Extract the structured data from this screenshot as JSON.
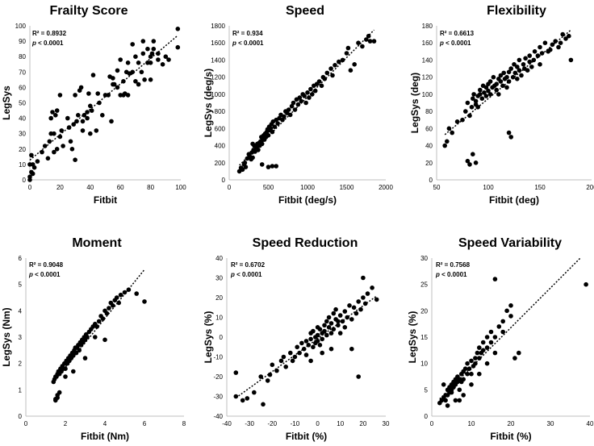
{
  "chart_data": [
    {
      "type": "scatter",
      "title": "Frailty Score",
      "xlabel": "Fitbit",
      "ylabel": "LegSys",
      "xlim": [
        0,
        100
      ],
      "ylim": [
        0,
        100
      ],
      "xticks": [
        "0",
        "20",
        "40",
        "60",
        "80",
        "100"
      ],
      "yticks": [
        "0",
        "10",
        "20",
        "30",
        "40",
        "50",
        "60",
        "70",
        "80",
        "90",
        "100"
      ],
      "r2_text": "R² = 0.8932",
      "p_label": "p",
      "p_value": " < 0.0001",
      "trendline": true,
      "trendline_color": "#000000",
      "marker_color": "#000000",
      "x": [
        0,
        0,
        0,
        1,
        1,
        2,
        2,
        3,
        5,
        8,
        10,
        12,
        13,
        14,
        14,
        15,
        16,
        16,
        17,
        18,
        18,
        20,
        20,
        21,
        22,
        25,
        26,
        27,
        28,
        29,
        30,
        30,
        31,
        32,
        33,
        34,
        35,
        35,
        36,
        38,
        38,
        39,
        40,
        40,
        41,
        42,
        44,
        45,
        46,
        48,
        50,
        52,
        53,
        54,
        55,
        55,
        56,
        58,
        58,
        60,
        60,
        62,
        62,
        63,
        64,
        65,
        65,
        66,
        68,
        68,
        70,
        70,
        72,
        72,
        74,
        75,
        75,
        76,
        78,
        78,
        80,
        80,
        80,
        81,
        82,
        82,
        85,
        85,
        88,
        90,
        92,
        98,
        98
      ],
      "y": [
        0,
        2,
        10,
        5,
        16,
        10,
        4,
        8,
        12,
        18,
        22,
        14,
        25,
        30,
        40,
        44,
        30,
        18,
        42,
        45,
        20,
        28,
        55,
        32,
        22,
        40,
        34,
        25,
        20,
        36,
        13,
        55,
        38,
        42,
        58,
        60,
        38,
        32,
        42,
        44,
        40,
        56,
        48,
        30,
        45,
        68,
        32,
        56,
        50,
        42,
        55,
        55,
        67,
        38,
        62,
        66,
        62,
        60,
        71,
        55,
        78,
        55,
        64,
        56,
        70,
        76,
        55,
        69,
        70,
        88,
        80,
        64,
        62,
        76,
        70,
        82,
        90,
        65,
        76,
        85,
        76,
        80,
        65,
        82,
        85,
        90,
        82,
        78,
        75,
        80,
        78,
        98,
        86
      ]
    },
    {
      "type": "scatter",
      "title": "Speed",
      "xlabel": "Fitbit (deg/s)",
      "ylabel": "LegSys (deg/s)",
      "xlim": [
        0,
        2000
      ],
      "ylim": [
        0,
        1800
      ],
      "xticks": [
        "0",
        "500",
        "1000",
        "1500",
        "2000"
      ],
      "yticks": [
        "0",
        "200",
        "400",
        "600",
        "800",
        "1000",
        "1200",
        "1400",
        "1600",
        "1800"
      ],
      "r2_text": "R² = 0.934",
      "p_label": "p",
      "p_value": " < 0.0001",
      "trendline": true,
      "trendline_color": "#000000",
      "marker_color": "#000000",
      "x": [
        130,
        150,
        170,
        190,
        200,
        210,
        230,
        250,
        260,
        280,
        290,
        300,
        310,
        320,
        330,
        350,
        360,
        370,
        380,
        390,
        400,
        410,
        420,
        430,
        440,
        450,
        460,
        470,
        480,
        490,
        500,
        510,
        520,
        530,
        540,
        550,
        560,
        580,
        600,
        620,
        640,
        660,
        680,
        700,
        720,
        740,
        760,
        780,
        800,
        820,
        840,
        860,
        880,
        900,
        920,
        940,
        960,
        980,
        1000,
        1020,
        1040,
        1060,
        1080,
        1100,
        1120,
        1150,
        1180,
        1200,
        1220,
        1250,
        1300,
        1320,
        1350,
        1400,
        1450,
        1500,
        1520,
        1550,
        1600,
        1650,
        1700,
        1750,
        1780,
        1800,
        1850,
        550,
        420,
        500,
        300,
        600
      ],
      "y": [
        100,
        140,
        120,
        180,
        200,
        150,
        250,
        300,
        280,
        240,
        320,
        260,
        350,
        400,
        330,
        380,
        420,
        350,
        430,
        400,
        450,
        500,
        420,
        480,
        520,
        470,
        540,
        500,
        560,
        590,
        520,
        620,
        580,
        600,
        650,
        560,
        680,
        620,
        700,
        660,
        720,
        760,
        700,
        740,
        800,
        780,
        820,
        760,
        860,
        900,
        820,
        940,
        880,
        960,
        920,
        1000,
        980,
        900,
        1020,
        960,
        1060,
        1000,
        1100,
        1040,
        1120,
        1150,
        1100,
        1200,
        1180,
        1250,
        1300,
        1220,
        1340,
        1380,
        1400,
        1480,
        1540,
        1280,
        1350,
        1600,
        1560,
        1640,
        1680,
        1620,
        1620,
        160,
        180,
        150,
        420,
        160
      ]
    },
    {
      "type": "scatter",
      "title": "Flexibility",
      "xlabel": "Fitbit (deg)",
      "ylabel": "LegSys (deg)",
      "xlim": [
        50,
        200
      ],
      "ylim": [
        0,
        180
      ],
      "xticks": [
        "50",
        "100",
        "150",
        "200"
      ],
      "yticks": [
        "0",
        "20",
        "40",
        "60",
        "80",
        "100",
        "120",
        "140",
        "160",
        "180"
      ],
      "r2_text": "R² = 0.6613",
      "p_label": "p",
      "p_value": " < 0.0001",
      "trendline": true,
      "trendline_color": "#000000",
      "marker_color": "#000000",
      "x": [
        58,
        60,
        62,
        65,
        70,
        75,
        78,
        80,
        82,
        84,
        85,
        86,
        88,
        88,
        90,
        90,
        92,
        92,
        94,
        95,
        96,
        98,
        98,
        100,
        100,
        102,
        102,
        104,
        105,
        106,
        108,
        108,
        110,
        110,
        112,
        112,
        114,
        115,
        116,
        118,
        118,
        120,
        120,
        122,
        124,
        125,
        126,
        128,
        128,
        130,
        130,
        132,
        134,
        135,
        136,
        138,
        140,
        140,
        142,
        144,
        145,
        148,
        150,
        150,
        152,
        155,
        158,
        160,
        162,
        165,
        168,
        170,
        172,
        175,
        178,
        180,
        120,
        122,
        88,
        80,
        82,
        85
      ],
      "y": [
        40,
        45,
        60,
        55,
        68,
        70,
        80,
        90,
        75,
        85,
        95,
        100,
        88,
        92,
        98,
        85,
        100,
        105,
        95,
        110,
        102,
        98,
        108,
        112,
        104,
        100,
        115,
        108,
        120,
        110,
        112,
        105,
        118,
        100,
        122,
        115,
        110,
        125,
        118,
        120,
        108,
        126,
        115,
        130,
        120,
        135,
        125,
        118,
        132,
        128,
        140,
        122,
        135,
        130,
        142,
        128,
        138,
        145,
        132,
        140,
        150,
        145,
        155,
        135,
        148,
        160,
        150,
        152,
        158,
        162,
        155,
        160,
        170,
        165,
        168,
        140,
        55,
        50,
        20,
        22,
        18,
        30
      ],
      "spare": null
    },
    {
      "type": "scatter",
      "title": "Moment",
      "xlabel": "Fitbit (Nm)",
      "ylabel": "LegSys (Nm)",
      "xlim": [
        0,
        8
      ],
      "ylim": [
        0,
        6
      ],
      "xticks": [
        "0",
        "2",
        "4",
        "6",
        "8"
      ],
      "yticks": [
        "0",
        "1",
        "2",
        "3",
        "4",
        "5",
        "6"
      ],
      "r2_text": "R² = 0.9048",
      "p_label": "p",
      "p_value": " < 0.0001",
      "trendline": true,
      "trendline_color": "#000000",
      "marker_color": "#000000",
      "x": [
        1.4,
        1.45,
        1.5,
        1.5,
        1.55,
        1.6,
        1.6,
        1.65,
        1.7,
        1.75,
        1.8,
        1.85,
        1.9,
        1.95,
        2.0,
        2.0,
        2.05,
        2.1,
        2.15,
        2.2,
        2.25,
        2.3,
        2.35,
        2.4,
        2.45,
        2.5,
        2.55,
        2.6,
        2.65,
        2.7,
        2.75,
        2.8,
        2.85,
        2.9,
        2.95,
        3.0,
        3.05,
        3.1,
        3.2,
        3.3,
        3.4,
        3.5,
        3.6,
        3.7,
        3.8,
        3.9,
        4.0,
        4.1,
        4.2,
        4.3,
        4.4,
        4.5,
        4.6,
        4.7,
        4.8,
        5.0,
        5.2,
        5.6,
        6.0,
        1.5,
        1.6,
        1.7,
        2.0,
        2.4,
        3.0,
        3.5,
        4.0
      ],
      "y": [
        1.3,
        1.4,
        1.5,
        0.6,
        1.5,
        1.6,
        0.7,
        1.7,
        1.6,
        1.8,
        1.7,
        1.9,
        1.8,
        2.0,
        2.0,
        1.8,
        2.1,
        2.0,
        2.2,
        2.1,
        2.3,
        2.2,
        2.4,
        2.3,
        2.5,
        2.6,
        2.4,
        2.6,
        2.7,
        2.5,
        2.8,
        2.7,
        2.9,
        2.8,
        3.0,
        2.9,
        3.1,
        3.0,
        3.2,
        3.3,
        3.4,
        3.5,
        3.4,
        3.6,
        3.8,
        3.7,
        4.0,
        3.9,
        4.1,
        4.3,
        4.2,
        4.4,
        4.5,
        4.3,
        4.6,
        4.7,
        4.8,
        4.65,
        4.35,
        0.65,
        0.8,
        0.9,
        1.5,
        1.7,
        2.2,
        3.0,
        2.9
      ]
    },
    {
      "type": "scatter",
      "title": "Speed Reduction",
      "xlabel": "Fitbit (%)",
      "ylabel": "LegSys (%)",
      "xlim": [
        -40,
        30
      ],
      "ylim": [
        -40,
        40
      ],
      "xticks": [
        "-40",
        "-30",
        "-20",
        "-10",
        "0",
        "10",
        "20",
        "30"
      ],
      "yticks": [
        "-40",
        "-30",
        "-20",
        "-10",
        "0",
        "10",
        "20",
        "30",
        "40"
      ],
      "r2_text": "R² = 0.6702",
      "p_label": "p",
      "p_value": " < 0.0001",
      "trendline": true,
      "trendline_color": "#000000",
      "marker_color": "#000000",
      "x": [
        -36,
        -33,
        -31,
        -28,
        -25,
        -22,
        -21,
        -20,
        -18,
        -16,
        -15,
        -14,
        -12,
        -11,
        -10,
        -9,
        -8,
        -7,
        -6,
        -5,
        -5,
        -4,
        -3,
        -3,
        -2,
        -2,
        -1,
        -1,
        0,
        0,
        0,
        1,
        1,
        2,
        2,
        3,
        3,
        4,
        4,
        5,
        5,
        6,
        6,
        7,
        7,
        8,
        8,
        9,
        10,
        10,
        11,
        12,
        13,
        14,
        15,
        16,
        17,
        18,
        19,
        20,
        21,
        22,
        24,
        26,
        -36,
        -24,
        18,
        20,
        15,
        -3,
        2,
        6,
        9,
        12
      ],
      "y": [
        -30,
        -32,
        -31,
        -28,
        -20,
        -22,
        -19,
        -14,
        -17,
        -12,
        -10,
        -15,
        -8,
        -12,
        -10,
        -5,
        -8,
        -3,
        -6,
        -2,
        -9,
        -4,
        2,
        -1,
        -5,
        3,
        0,
        -3,
        -2,
        5,
        1,
        -4,
        4,
        2,
        -1,
        6,
        3,
        8,
        1,
        5,
        10,
        7,
        2,
        12,
        4,
        9,
        14,
        6,
        11,
        2,
        8,
        13,
        10,
        16,
        9,
        15,
        12,
        18,
        14,
        20,
        17,
        22,
        25,
        19,
        -18,
        -34,
        -20,
        30,
        -6,
        -12,
        -8,
        -6,
        8,
        5
      ]
    },
    {
      "type": "scatter",
      "title": "Speed Variability",
      "xlabel": "Fitbit (%)",
      "ylabel": "LegSys (%)",
      "xlim": [
        0,
        40
      ],
      "ylim": [
        0,
        30
      ],
      "xticks": [
        "0",
        "10",
        "20",
        "30",
        "40"
      ],
      "yticks": [
        "0",
        "5",
        "10",
        "15",
        "20",
        "25",
        "30"
      ],
      "r2_text": "R² = 0.7568",
      "p_label": "p",
      "p_value": " < 0.0001",
      "trendline": true,
      "trendline_color": "#000000",
      "marker_color": "#000000",
      "x": [
        2,
        2.5,
        3,
        3.5,
        3.5,
        4,
        4,
        4.5,
        4.5,
        5,
        5,
        5.5,
        5.5,
        6,
        6,
        6.5,
        6.5,
        7,
        7,
        7.5,
        7.5,
        8,
        8,
        8.5,
        9,
        9,
        9.5,
        10,
        10,
        10.5,
        11,
        11,
        11.5,
        12,
        12,
        12.5,
        13,
        13,
        14,
        14,
        15,
        15,
        16,
        16,
        17,
        18,
        18,
        19,
        20,
        21,
        22,
        3,
        4,
        5,
        6,
        7,
        8,
        10,
        12,
        14,
        16,
        20,
        39
      ],
      "y": [
        2.5,
        3,
        3.5,
        4,
        3,
        5,
        4,
        4.5,
        5.5,
        5,
        6,
        5.5,
        6.5,
        6,
        7,
        6.5,
        7.5,
        7,
        5,
        8,
        6.5,
        8.5,
        7,
        9,
        8,
        10,
        9,
        10.5,
        8,
        9.5,
        11,
        10,
        12,
        11,
        13,
        12,
        12.5,
        14,
        13,
        15,
        14,
        16,
        26,
        15,
        17,
        16,
        18,
        20,
        21,
        11,
        12,
        6,
        2,
        4.5,
        3,
        3,
        4,
        6,
        8,
        10,
        12,
        19,
        25
      ]
    }
  ]
}
